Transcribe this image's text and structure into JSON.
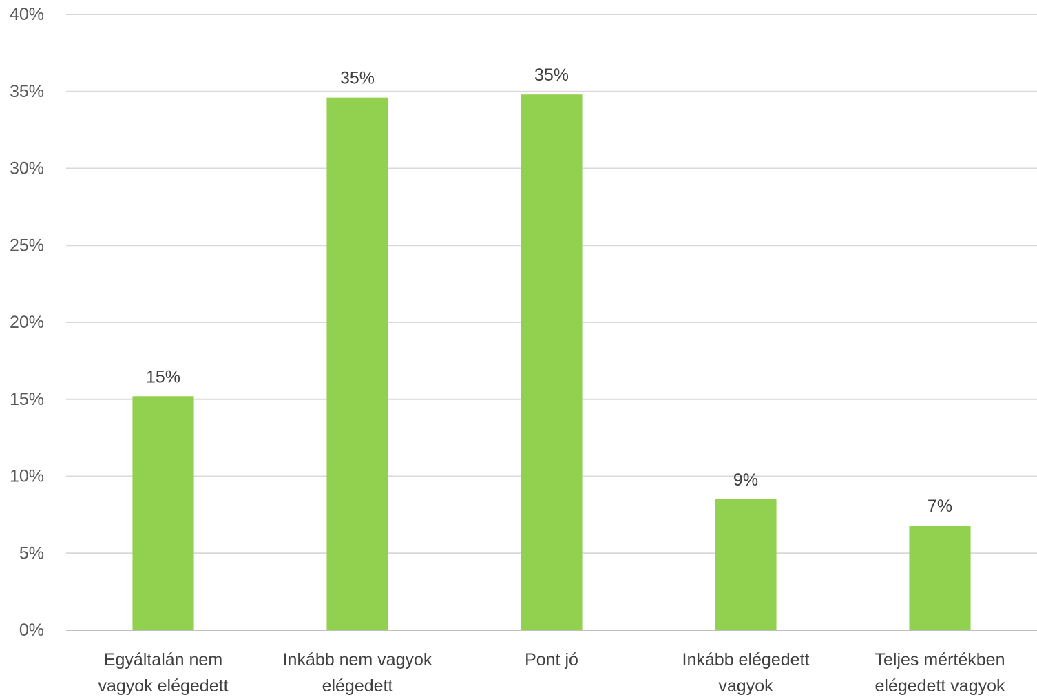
{
  "chart_data": {
    "type": "bar",
    "title": "",
    "xlabel": "",
    "ylabel": "",
    "categories": [
      [
        "Egyáltalán nem",
        "vagyok elégedett"
      ],
      [
        "Inkább nem vagyok",
        "elégedett"
      ],
      [
        "Pont jó"
      ],
      [
        "Inkább elégedett",
        "vagyok"
      ],
      [
        "Teljes mértékben",
        "elégedett vagyok"
      ]
    ],
    "values": [
      15.2,
      34.6,
      34.8,
      8.5,
      6.8
    ],
    "data_labels": [
      "15%",
      "35%",
      "35%",
      "9%",
      "7%"
    ],
    "ylim": [
      0,
      40
    ],
    "yticks": [
      0,
      5,
      10,
      15,
      20,
      25,
      30,
      35,
      40
    ],
    "ytick_labels": [
      "0%",
      "5%",
      "10%",
      "15%",
      "20%",
      "25%",
      "30%",
      "35%",
      "40%"
    ],
    "grid": true,
    "legend": "none",
    "bar_color": "#92d050"
  }
}
